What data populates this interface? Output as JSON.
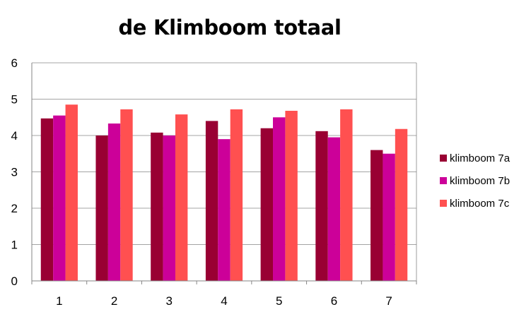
{
  "chart_data": {
    "type": "bar",
    "title": "de Klimboom totaal",
    "xlabel": "",
    "ylabel": "",
    "categories": [
      "1",
      "2",
      "3",
      "4",
      "5",
      "6",
      "7"
    ],
    "ylim": [
      0,
      6
    ],
    "yticks": [
      "0",
      "1",
      "2",
      "3",
      "4",
      "5",
      "6"
    ],
    "grid": true,
    "legend_position": "right",
    "series": [
      {
        "name": "klimboom 7a",
        "color": "#990033",
        "values": [
          4.47,
          4.0,
          4.08,
          4.4,
          4.2,
          4.12,
          3.6
        ]
      },
      {
        "name": "klimboom 7b",
        "color": "#CC0099",
        "values": [
          4.55,
          4.33,
          4.0,
          3.9,
          4.5,
          3.95,
          3.5
        ]
      },
      {
        "name": "klimboom 7c",
        "color": "#FF5050",
        "values": [
          4.85,
          4.72,
          4.58,
          4.72,
          4.68,
          4.72,
          4.18
        ]
      }
    ]
  }
}
